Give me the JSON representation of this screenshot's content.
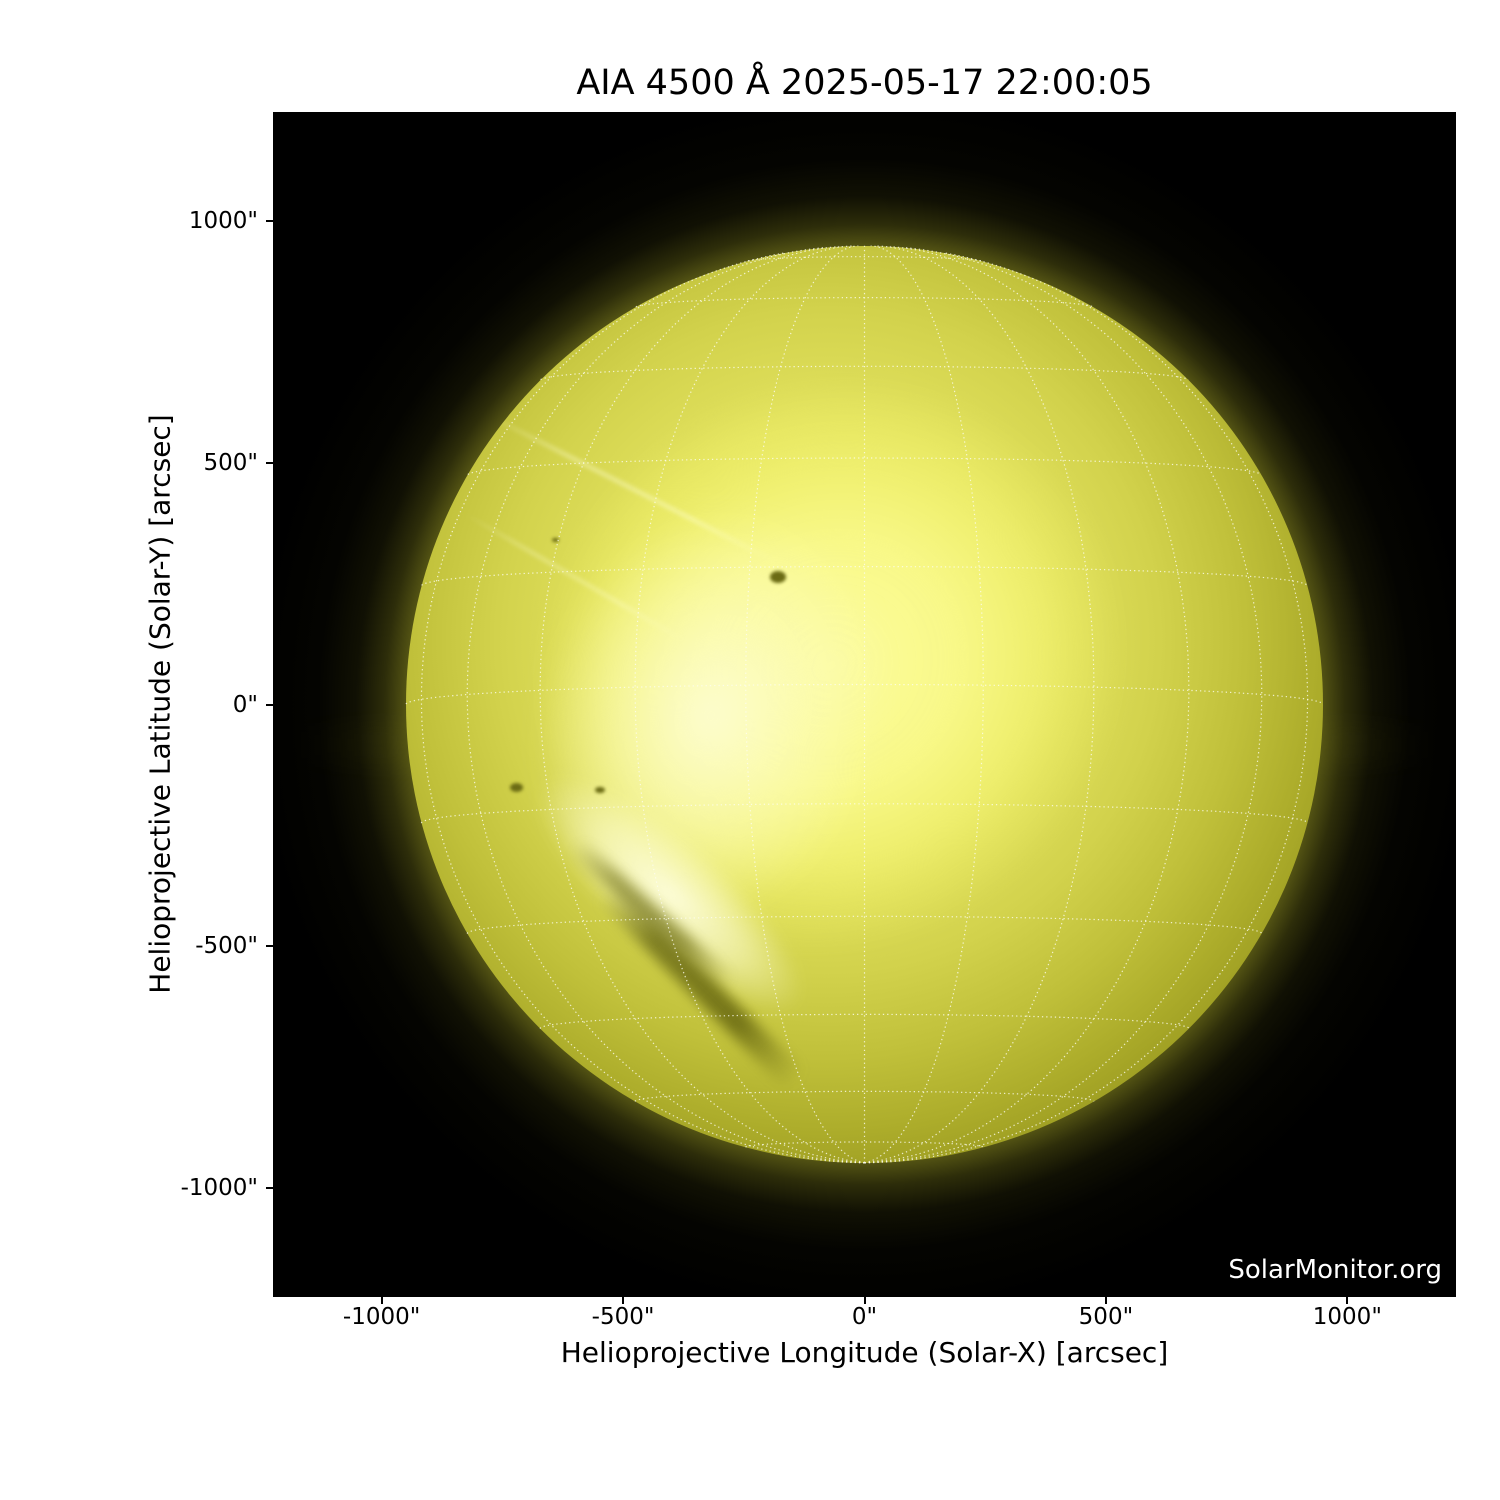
{
  "figure": {
    "title": "AIA 4500 Å 2025-05-17 22:00:05",
    "watermark": "SolarMonitor.org"
  },
  "axes": {
    "x": {
      "label": "Helioprojective Longitude (Solar-X) [arcsec]",
      "ticks": [
        {
          "value": -1000,
          "label": "-1000\""
        },
        {
          "value": -500,
          "label": "-500\""
        },
        {
          "value": 0,
          "label": "0\""
        },
        {
          "value": 500,
          "label": "500\""
        },
        {
          "value": 1000,
          "label": "1000\""
        }
      ]
    },
    "y": {
      "label": "Helioprojective Latitude (Solar-Y) [arcsec]",
      "ticks": [
        {
          "value": 1000,
          "label": "1000\""
        },
        {
          "value": 500,
          "label": "500\""
        },
        {
          "value": 0,
          "label": "0\""
        },
        {
          "value": -500,
          "label": "-500\""
        },
        {
          "value": -1000,
          "label": "-1000\""
        }
      ]
    }
  },
  "chart_data": {
    "type": "heatmap",
    "title": "AIA 4500 Å 2025-05-17 22:00:05",
    "instrument": "AIA",
    "wavelength_angstrom": 4500,
    "observation_time": "2025-05-17 22:00:05",
    "xlabel": "Helioprojective Longitude (Solar-X) [arcsec]",
    "ylabel": "Helioprojective Latitude (Solar-Y) [arcsec]",
    "xlim": [
      -1225,
      1225
    ],
    "ylim": [
      -1225,
      1225
    ],
    "xticks": [
      -1000,
      -500,
      0,
      500,
      1000
    ],
    "yticks": [
      -1000,
      -500,
      0,
      500,
      1000
    ],
    "background": "#000000",
    "grid_overlay": {
      "type": "heliographic",
      "spacing_deg": 15,
      "b0_deg": -2.5,
      "style": "dotted",
      "color": "#fcfcf0"
    },
    "solar_disk": {
      "center_arcsec": [
        0,
        0
      ],
      "radius_arcsec": 950
    },
    "sunspots_arcsec": [
      {
        "x": -179,
        "y": 264,
        "w": 34,
        "h": 25
      },
      {
        "x": -720,
        "y": -171,
        "w": 27,
        "h": 19
      },
      {
        "x": -548,
        "y": -177,
        "w": 20,
        "h": 14
      },
      {
        "x": -640,
        "y": 340,
        "w": 14,
        "h": 10
      }
    ],
    "colors": {
      "disk_core": "#fafa9c",
      "disk_mid": "#c8c83c",
      "disk_limb": "#6e6e10",
      "saturated_region": "#fcfc90",
      "glow": "#8c8c1c",
      "grid_line": "#fcfcf0",
      "page": "#ffffff",
      "text": "#000000",
      "watermark_text": "#ffffff"
    }
  }
}
